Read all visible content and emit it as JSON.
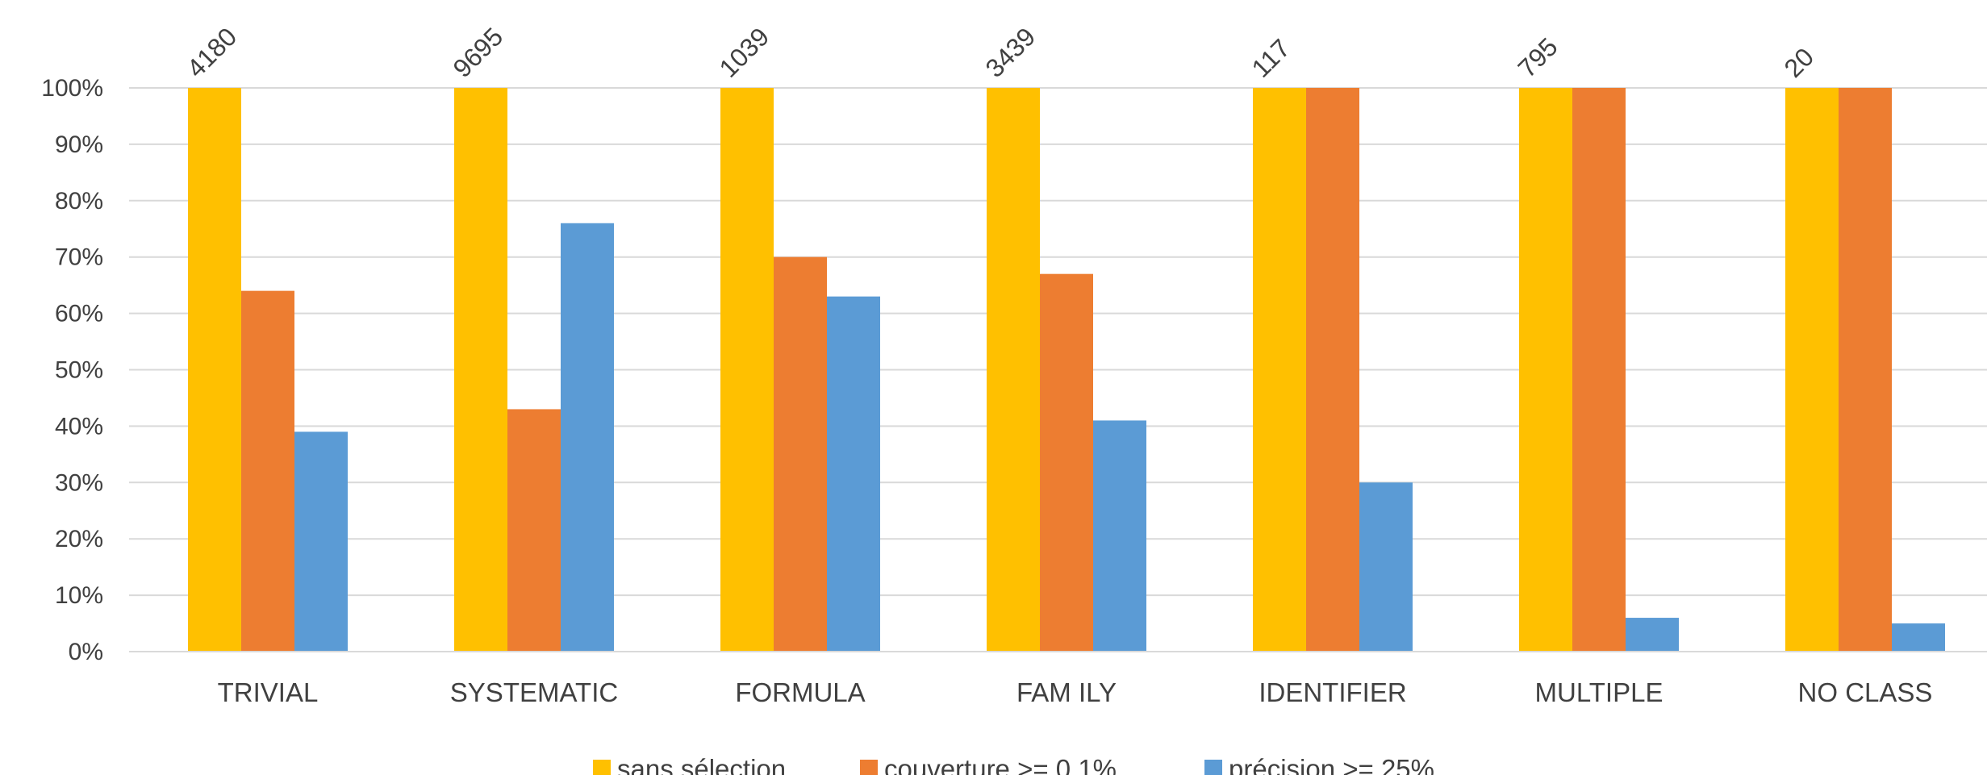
{
  "chart_data": {
    "type": "bar",
    "categories": [
      "TRIVIAL",
      "SYSTEMATIC",
      "FORMULA",
      "FAM ILY",
      "IDENTIFIER",
      "MULTIPLE",
      "NO CLASS"
    ],
    "category_totals": [
      "4180",
      "9695",
      "1039",
      "3439",
      "117",
      "795",
      "20"
    ],
    "series": [
      {
        "name": "sans sélection",
        "values": [
          100,
          100,
          100,
          100,
          100,
          100,
          100
        ],
        "color": "#FFC000"
      },
      {
        "name": "couverture >= 0.1%",
        "values": [
          64,
          43,
          70,
          67,
          100,
          100,
          100
        ],
        "color": "#ED7D31"
      },
      {
        "name": "précision >= 25%",
        "values": [
          39,
          76,
          63,
          41,
          30,
          6,
          5
        ],
        "color": "#5B9BD5"
      }
    ],
    "ylim": [
      0,
      100
    ],
    "yticks": [
      "0%",
      "10%",
      "20%",
      "30%",
      "40%",
      "50%",
      "60%",
      "70%",
      "80%",
      "90%",
      "100%"
    ],
    "grid": true,
    "legend_position": "bottom",
    "title": "",
    "xlabel": "",
    "ylabel": ""
  }
}
